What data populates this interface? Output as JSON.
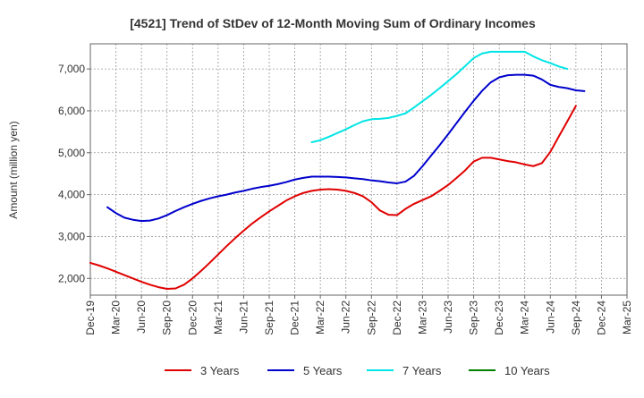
{
  "chart_data": {
    "type": "line",
    "title": "[4521]  Trend of StDev of 12-Month Moving Sum of Ordinary Incomes",
    "xlabel": "",
    "ylabel": "Amount (million yen)",
    "x_ticks": [
      "Dec-19",
      "Mar-20",
      "Jun-20",
      "Sep-20",
      "Dec-20",
      "Mar-21",
      "Jun-21",
      "Sep-21",
      "Dec-21",
      "Mar-22",
      "Jun-22",
      "Sep-22",
      "Dec-22",
      "Mar-23",
      "Jun-23",
      "Sep-23",
      "Dec-23",
      "Mar-24",
      "Jun-24",
      "Sep-24",
      "Dec-24",
      "Mar-25"
    ],
    "y_ticks": [
      2000,
      3000,
      4000,
      5000,
      6000,
      7000
    ],
    "y_tick_labels": [
      "2,000",
      "3,000",
      "4,000",
      "5,000",
      "6,000",
      "7,000"
    ],
    "ylim": [
      1600,
      7600
    ],
    "grid": true,
    "legend_position": "bottom",
    "series": [
      {
        "name": "3 Years",
        "color": "#e00000",
        "start": "Dec-19",
        "values": [
          2370,
          2310,
          2240,
          2160,
          2080,
          2000,
          1920,
          1850,
          1790,
          1750,
          1760,
          1850,
          2000,
          2180,
          2370,
          2570,
          2770,
          2960,
          3140,
          3310,
          3460,
          3600,
          3730,
          3860,
          3960,
          4040,
          4090,
          4120,
          4130,
          4120,
          4090,
          4040,
          3960,
          3820,
          3620,
          3520,
          3510,
          3660,
          3780,
          3870,
          3960,
          4090,
          4230,
          4400,
          4580,
          4790,
          4880,
          4880,
          4840,
          4800,
          4770,
          4720,
          4680,
          4750,
          5020,
          5390,
          5750,
          6120
        ]
      },
      {
        "name": "5 Years",
        "color": "#0000cc",
        "start": "Dec-19",
        "values": [
          null,
          null,
          3700,
          3560,
          3450,
          3400,
          3370,
          3380,
          3430,
          3510,
          3610,
          3700,
          3780,
          3850,
          3910,
          3960,
          4000,
          4050,
          4090,
          4140,
          4180,
          4210,
          4250,
          4300,
          4360,
          4400,
          4430,
          4430,
          4430,
          4420,
          4410,
          4390,
          4370,
          4340,
          4320,
          4290,
          4270,
          4310,
          4450,
          4680,
          4930,
          5180,
          5440,
          5710,
          5980,
          6240,
          6480,
          6680,
          6800,
          6850,
          6860,
          6860,
          6840,
          6750,
          6620,
          6570,
          6540,
          6490,
          6470
        ]
      },
      {
        "name": "7 Years",
        "color": "#00e5e5",
        "start": "Dec-19",
        "values": [
          null,
          null,
          null,
          null,
          null,
          null,
          null,
          null,
          null,
          null,
          null,
          null,
          null,
          null,
          null,
          null,
          null,
          null,
          null,
          null,
          null,
          null,
          null,
          null,
          null,
          null,
          5250,
          5300,
          5380,
          5470,
          5560,
          5660,
          5750,
          5800,
          5810,
          5830,
          5880,
          5940,
          6080,
          6230,
          6380,
          6540,
          6710,
          6880,
          7070,
          7260,
          7370,
          7410,
          7410,
          7410,
          7410,
          7410,
          7300,
          7210,
          7140,
          7060,
          7000
        ]
      },
      {
        "name": "10 Years",
        "color": "#008000",
        "start": "Dec-19",
        "values": []
      }
    ]
  }
}
